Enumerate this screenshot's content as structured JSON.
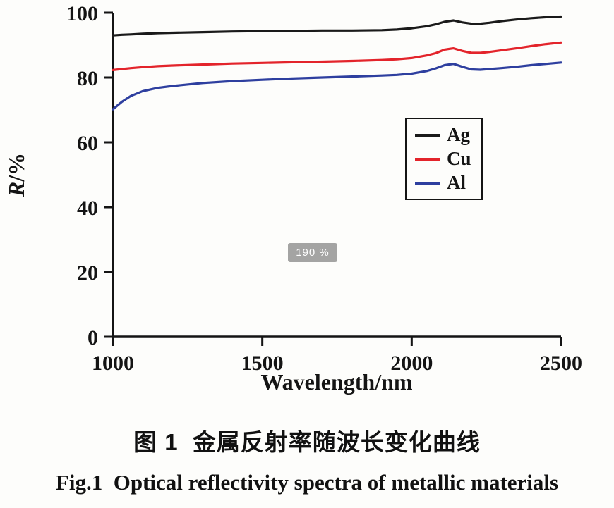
{
  "figure": {
    "caption_zh": "图 1  金属反射率随波长变化曲线",
    "caption_en": "Fig.1  Optical reflectivity spectra of metallic materials"
  },
  "overlay": {
    "zoom_badge": "190 %"
  },
  "chart_data": {
    "type": "line",
    "title": "",
    "xlabel": "Wavelength/nm",
    "ylabel": "R/%",
    "ylabel_parts": [
      "R",
      "/%"
    ],
    "xlim": [
      1000,
      2500
    ],
    "ylim": [
      0,
      100
    ],
    "x_ticks": [
      1000,
      1500,
      2000,
      2500
    ],
    "y_ticks": [
      0,
      20,
      40,
      60,
      80,
      100
    ],
    "grid": false,
    "legend_position": "inside-right",
    "x": [
      1000,
      1030,
      1060,
      1100,
      1150,
      1200,
      1300,
      1400,
      1500,
      1600,
      1700,
      1800,
      1900,
      1950,
      2000,
      2050,
      2080,
      2110,
      2140,
      2170,
      2200,
      2230,
      2260,
      2300,
      2350,
      2400,
      2450,
      2500
    ],
    "series": [
      {
        "name": "Ag",
        "color": "#1a1a1a",
        "values": [
          93.0,
          93.2,
          93.3,
          93.5,
          93.7,
          93.8,
          94.0,
          94.2,
          94.3,
          94.4,
          94.5,
          94.5,
          94.6,
          94.8,
          95.2,
          95.8,
          96.4,
          97.2,
          97.6,
          97.0,
          96.6,
          96.6,
          96.9,
          97.4,
          97.9,
          98.3,
          98.6,
          98.8
        ]
      },
      {
        "name": "Cu",
        "color": "#e3242b",
        "values": [
          82.3,
          82.6,
          82.9,
          83.2,
          83.5,
          83.7,
          84.0,
          84.3,
          84.5,
          84.7,
          84.9,
          85.1,
          85.4,
          85.6,
          86.0,
          86.8,
          87.5,
          88.6,
          89.0,
          88.2,
          87.6,
          87.6,
          87.9,
          88.4,
          89.0,
          89.7,
          90.3,
          90.8
        ]
      },
      {
        "name": "Al",
        "color": "#2e3f9f",
        "values": [
          70.2,
          72.5,
          74.3,
          75.8,
          76.8,
          77.4,
          78.3,
          78.9,
          79.3,
          79.7,
          80.0,
          80.3,
          80.6,
          80.8,
          81.2,
          82.0,
          82.8,
          83.8,
          84.2,
          83.3,
          82.5,
          82.4,
          82.6,
          82.9,
          83.3,
          83.8,
          84.2,
          84.6
        ]
      }
    ]
  }
}
